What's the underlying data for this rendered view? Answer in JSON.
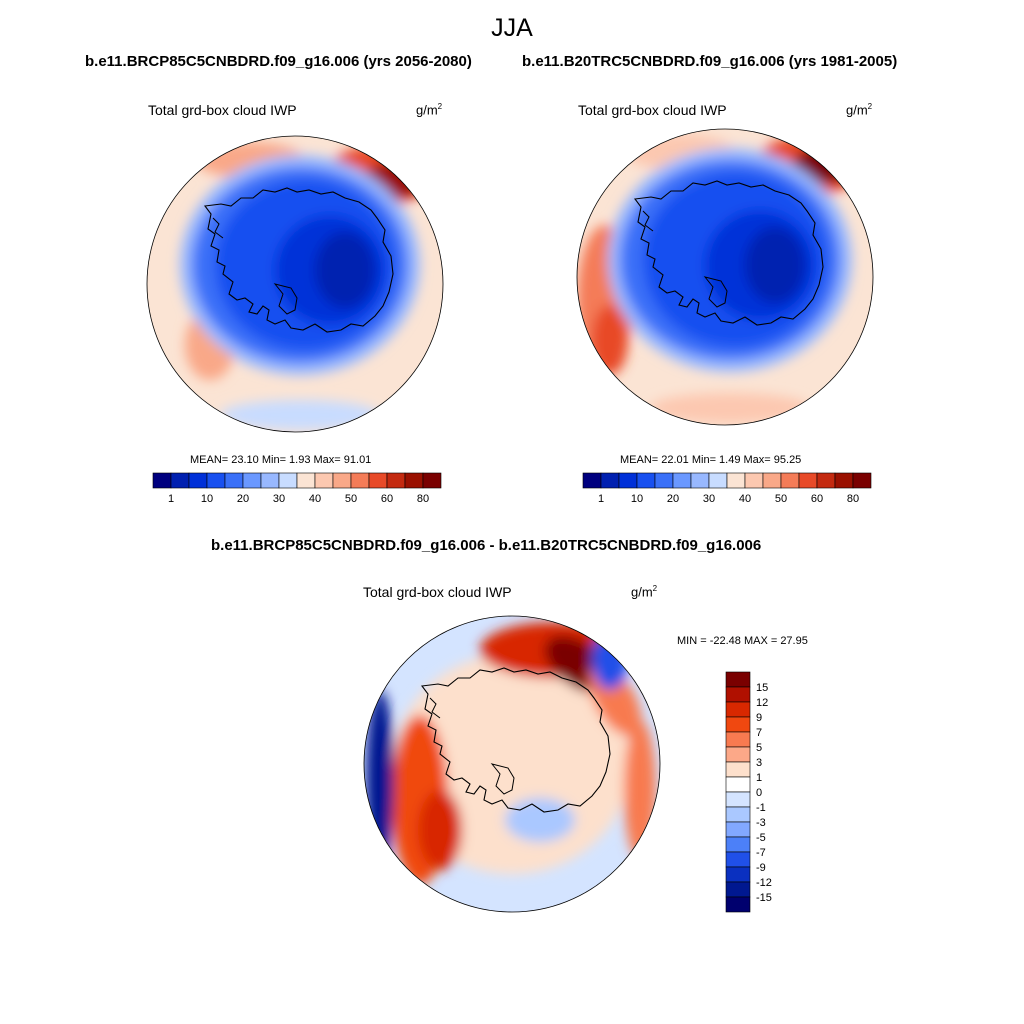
{
  "figure": {
    "title": "JJA",
    "panels": [
      {
        "case": "b.e11.BRCP85C5CNBDRD.f09_g16.006 (yrs 2056-2080)",
        "variable": "Total grd-box cloud IWP",
        "units_base": "g/m",
        "units_exp": "2",
        "stats": "MEAN=  23.10  Min=   1.93  Max=  91.01",
        "colorbar_ticks": [
          "1",
          "10",
          "20",
          "30",
          "40",
          "50",
          "60",
          "80"
        ]
      },
      {
        "case": "b.e11.B20TRC5CNBDRD.f09_g16.006 (yrs 1981-2005)",
        "variable": "Total grd-box cloud IWP",
        "units_base": "g/m",
        "units_exp": "2",
        "stats": "MEAN=  22.01  Min=   1.49  Max=  95.25",
        "colorbar_ticks": [
          "1",
          "10",
          "20",
          "30",
          "40",
          "50",
          "60",
          "80"
        ]
      },
      {
        "case": "b.e11.BRCP85C5CNBDRD.f09_g16.006 - b.e11.B20TRC5CNBDRD.f09_g16.006",
        "variable": "Total grd-box cloud IWP",
        "units_base": "g/m",
        "units_exp": "2",
        "stats": "MIN = -22.48 MAX =  27.95",
        "colorbar_ticks": [
          "15",
          "12",
          "9",
          "7",
          "5",
          "3",
          "1",
          "0",
          "-1",
          "-3",
          "-5",
          "-7",
          "-9",
          "-12",
          "-15"
        ]
      }
    ],
    "colors": {
      "sequential": [
        "#00007f",
        "#0020b0",
        "#0030d8",
        "#1850f0",
        "#3a70f8",
        "#6a98ff",
        "#98b8ff",
        "#c8dcff",
        "#fbe4d4",
        "#fcc8b0",
        "#f9a888",
        "#f47c58",
        "#e84a28",
        "#c42a10",
        "#9a1000",
        "#7a0000"
      ],
      "diverging": [
        "#7a0000",
        "#b01000",
        "#d82800",
        "#f04810",
        "#f87a50",
        "#fca888",
        "#fde0cc",
        "#ffffff",
        "#d4e4ff",
        "#aac8ff",
        "#82a8ff",
        "#4c80f8",
        "#2050e8",
        "#0a30c0",
        "#001890",
        "#00006e"
      ]
    }
  }
}
